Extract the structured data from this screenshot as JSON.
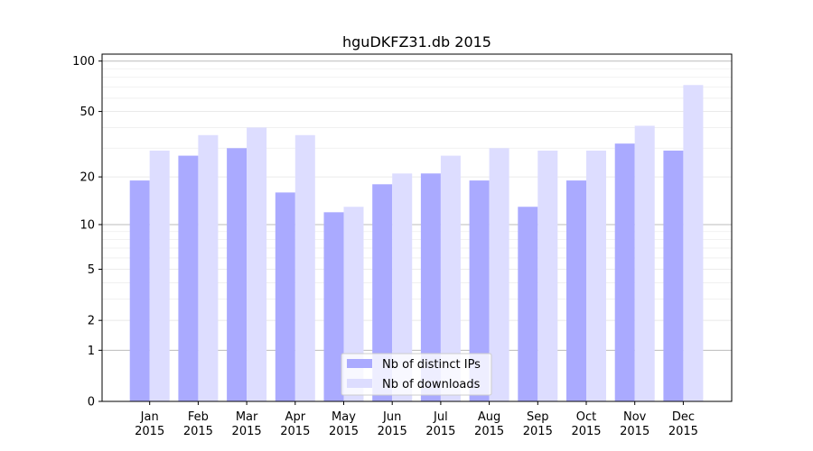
{
  "chart_data": {
    "type": "bar",
    "title": "hguDKFZ31.db 2015",
    "xlabel": "",
    "ylabel": "",
    "yscale": "log(1+y)",
    "ylim": [
      0,
      110
    ],
    "yticks": [
      0,
      1,
      2,
      5,
      10,
      20,
      50,
      100
    ],
    "grid": true,
    "legend_position": "bottom-center",
    "categories": [
      "Jan\n2015",
      "Feb\n2015",
      "Mar\n2015",
      "Apr\n2015",
      "May\n2015",
      "Jun\n2015",
      "Jul\n2015",
      "Aug\n2015",
      "Sep\n2015",
      "Oct\n2015",
      "Nov\n2015",
      "Dec\n2015"
    ],
    "series": [
      {
        "name": "Nb of distinct IPs",
        "color": "#aaaaff",
        "values": [
          19,
          27,
          30,
          16,
          12,
          18,
          21,
          19,
          13,
          19,
          32,
          29
        ]
      },
      {
        "name": "Nb of downloads",
        "color": "#ddddff",
        "values": [
          29,
          36,
          40,
          36,
          13,
          21,
          27,
          30,
          29,
          29,
          41,
          72
        ]
      }
    ]
  }
}
